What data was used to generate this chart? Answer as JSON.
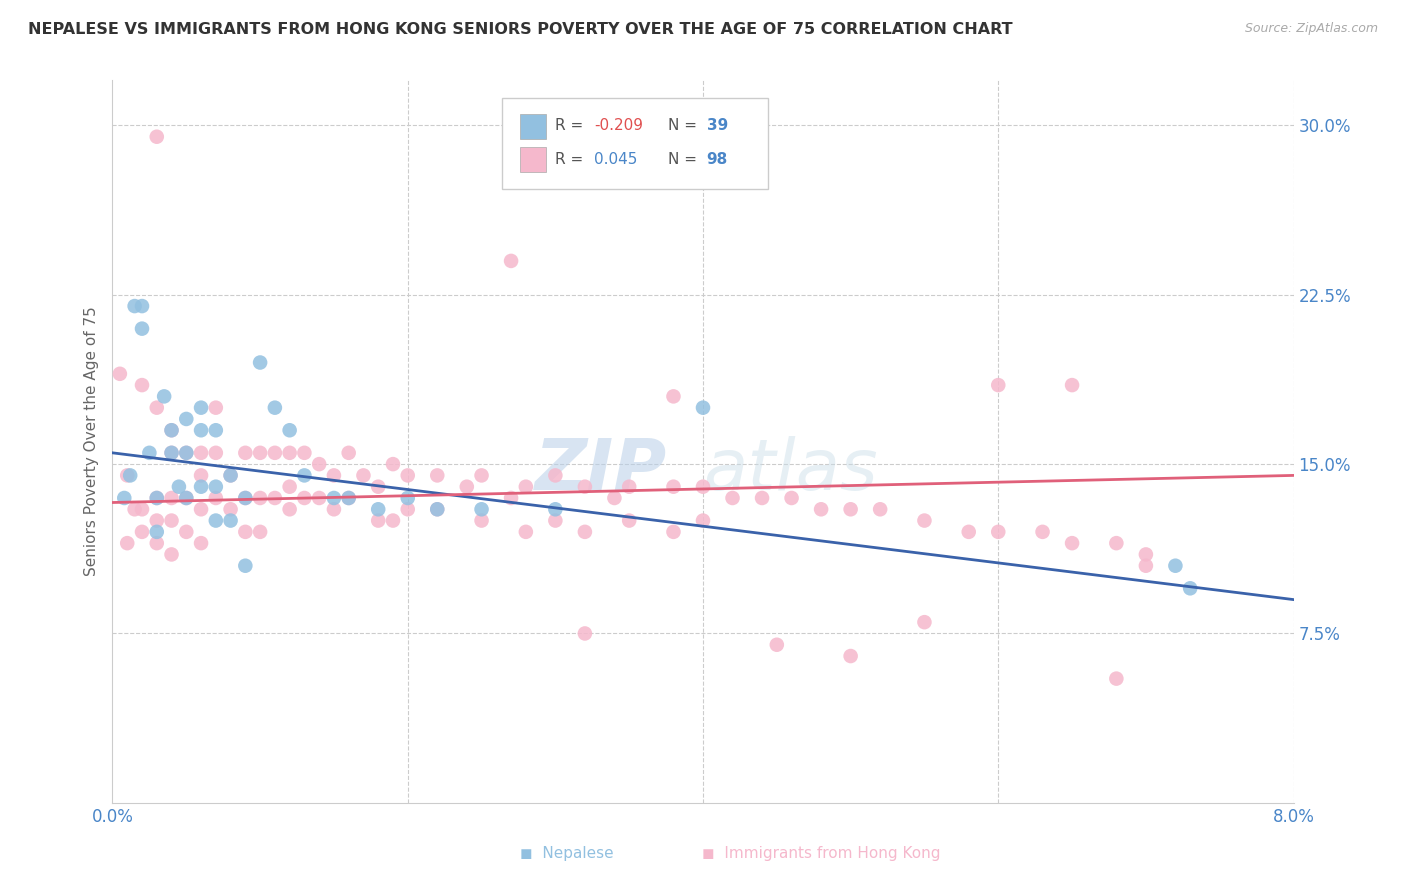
{
  "title": "NEPALESE VS IMMIGRANTS FROM HONG KONG SENIORS POVERTY OVER THE AGE OF 75 CORRELATION CHART",
  "source": "Source: ZipAtlas.com",
  "ylabel": "Seniors Poverty Over the Age of 75",
  "x_min": 0.0,
  "x_max": 0.08,
  "y_min": 0.0,
  "y_max": 0.32,
  "y_ticks_right": [
    0.075,
    0.15,
    0.225,
    0.3
  ],
  "y_tick_labels_right": [
    "7.5%",
    "15.0%",
    "22.5%",
    "30.0%"
  ],
  "blue_color": "#92c0e0",
  "pink_color": "#f5b8cc",
  "blue_line_color": "#3a62aa",
  "pink_line_color": "#e0607a",
  "nepalese_x": [
    0.0008,
    0.0012,
    0.0015,
    0.002,
    0.002,
    0.0025,
    0.003,
    0.003,
    0.0035,
    0.004,
    0.004,
    0.0045,
    0.005,
    0.005,
    0.005,
    0.006,
    0.006,
    0.006,
    0.007,
    0.007,
    0.007,
    0.008,
    0.008,
    0.009,
    0.009,
    0.01,
    0.011,
    0.012,
    0.013,
    0.015,
    0.016,
    0.018,
    0.02,
    0.022,
    0.025,
    0.03,
    0.04,
    0.072,
    0.073
  ],
  "nepalese_y": [
    0.135,
    0.145,
    0.22,
    0.22,
    0.21,
    0.155,
    0.135,
    0.12,
    0.18,
    0.165,
    0.155,
    0.14,
    0.17,
    0.155,
    0.135,
    0.175,
    0.165,
    0.14,
    0.165,
    0.14,
    0.125,
    0.145,
    0.125,
    0.135,
    0.105,
    0.195,
    0.175,
    0.165,
    0.145,
    0.135,
    0.135,
    0.13,
    0.135,
    0.13,
    0.13,
    0.13,
    0.175,
    0.105,
    0.095
  ],
  "hk_x": [
    0.0005,
    0.001,
    0.001,
    0.0015,
    0.002,
    0.002,
    0.002,
    0.003,
    0.003,
    0.003,
    0.003,
    0.004,
    0.004,
    0.004,
    0.004,
    0.004,
    0.005,
    0.005,
    0.005,
    0.006,
    0.006,
    0.006,
    0.006,
    0.007,
    0.007,
    0.007,
    0.008,
    0.008,
    0.009,
    0.009,
    0.009,
    0.01,
    0.01,
    0.01,
    0.011,
    0.011,
    0.012,
    0.012,
    0.012,
    0.013,
    0.013,
    0.014,
    0.014,
    0.015,
    0.015,
    0.016,
    0.016,
    0.017,
    0.018,
    0.018,
    0.019,
    0.019,
    0.02,
    0.02,
    0.022,
    0.022,
    0.024,
    0.025,
    0.025,
    0.027,
    0.028,
    0.028,
    0.03,
    0.03,
    0.032,
    0.032,
    0.034,
    0.035,
    0.035,
    0.038,
    0.038,
    0.04,
    0.04,
    0.042,
    0.044,
    0.046,
    0.048,
    0.05,
    0.052,
    0.055,
    0.058,
    0.06,
    0.063,
    0.065,
    0.068,
    0.07,
    0.003,
    0.027,
    0.05,
    0.06,
    0.065,
    0.068,
    0.07,
    0.038,
    0.045,
    0.055,
    0.032
  ],
  "hk_y": [
    0.19,
    0.145,
    0.115,
    0.13,
    0.13,
    0.12,
    0.185,
    0.175,
    0.135,
    0.125,
    0.115,
    0.165,
    0.155,
    0.135,
    0.125,
    0.11,
    0.155,
    0.135,
    0.12,
    0.155,
    0.145,
    0.13,
    0.115,
    0.175,
    0.155,
    0.135,
    0.145,
    0.13,
    0.155,
    0.135,
    0.12,
    0.155,
    0.135,
    0.12,
    0.155,
    0.135,
    0.155,
    0.14,
    0.13,
    0.155,
    0.135,
    0.15,
    0.135,
    0.145,
    0.13,
    0.155,
    0.135,
    0.145,
    0.14,
    0.125,
    0.15,
    0.125,
    0.145,
    0.13,
    0.145,
    0.13,
    0.14,
    0.145,
    0.125,
    0.135,
    0.14,
    0.12,
    0.145,
    0.125,
    0.14,
    0.12,
    0.135,
    0.14,
    0.125,
    0.14,
    0.12,
    0.14,
    0.125,
    0.135,
    0.135,
    0.135,
    0.13,
    0.13,
    0.13,
    0.125,
    0.12,
    0.12,
    0.12,
    0.115,
    0.115,
    0.11,
    0.295,
    0.24,
    0.065,
    0.185,
    0.185,
    0.055,
    0.105,
    0.18,
    0.07,
    0.08,
    0.075
  ]
}
